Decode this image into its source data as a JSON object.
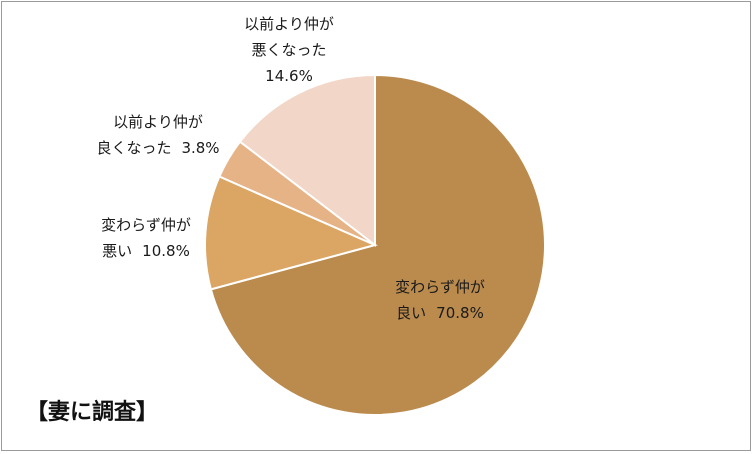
{
  "chart_data": {
    "type": "pie",
    "title": "",
    "subset_label": "【妻に調査】",
    "start_angle_deg": 0,
    "direction": "clockwise",
    "slices": [
      {
        "label_lines": [
          "変わらず仲が",
          "良い"
        ],
        "value": 70.8,
        "value_text": "70.8%",
        "color": "#bb8b4e"
      },
      {
        "label_lines": [
          "変わらず仲が",
          "悪い"
        ],
        "value": 10.8,
        "value_text": "10.8%",
        "color": "#dba564"
      },
      {
        "label_lines": [
          "以前より仲が",
          "良くなった"
        ],
        "value": 3.8,
        "value_text": "3.8%",
        "color": "#e6b386"
      },
      {
        "label_lines": [
          "以前より仲が",
          "悪くなった"
        ],
        "value": 14.6,
        "value_text": "14.6%",
        "color": "#f2d6c7"
      }
    ]
  }
}
